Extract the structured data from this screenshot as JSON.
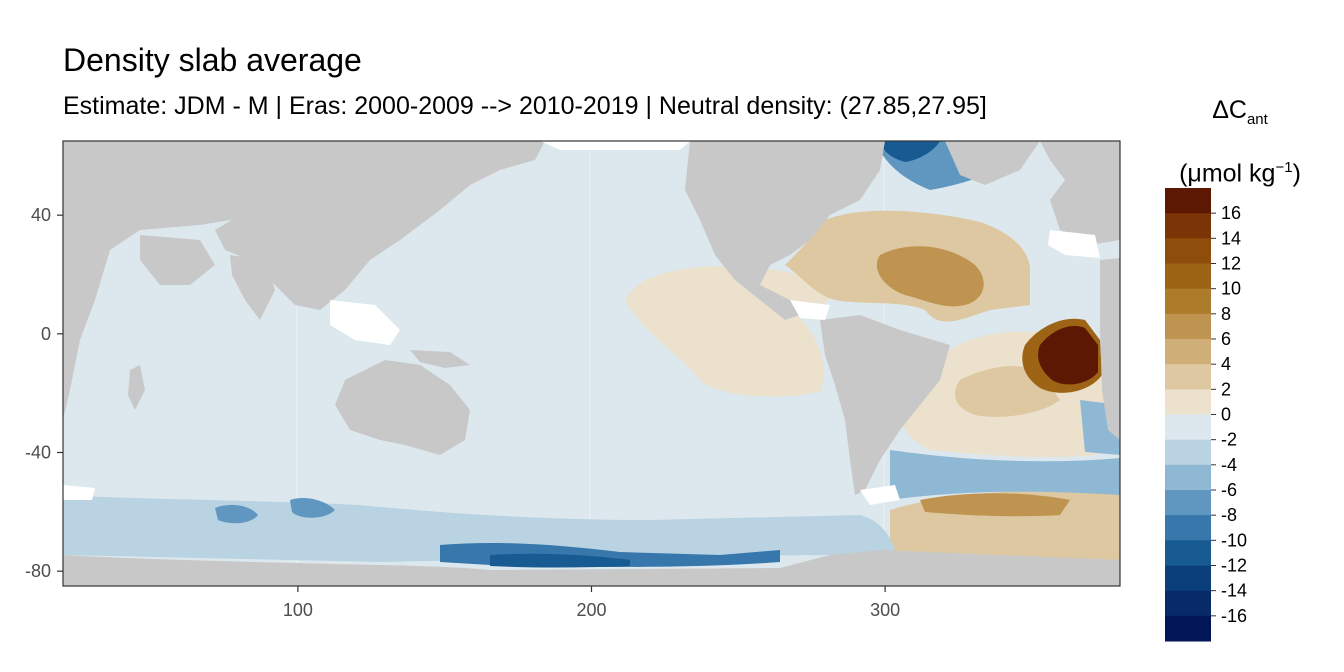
{
  "title": "Density slab average",
  "subtitle": "Estimate: JDM - M | Eras: 2000-2009 --> 2010-2019 | Neutral density: (27.85,27.95]",
  "legend": {
    "title_main": "ΔC",
    "title_sub": "ant",
    "units_open": "(μmol kg",
    "units_sup": "−1",
    "units_close": ")",
    "labels": [
      "16",
      "14",
      "12",
      "10",
      "8",
      "6",
      "4",
      "2",
      "0",
      "-2",
      "-4",
      "-6",
      "-8",
      "-10",
      "-12",
      "-14",
      "-16"
    ],
    "colors": [
      "#5c1802",
      "#7a3406",
      "#8f4d0b",
      "#9e6416",
      "#ad7c2b",
      "#bf9450",
      "#cfae78",
      "#ddc8a1",
      "#ebe1cd",
      "#dde8ee",
      "#b9d3e2",
      "#8fb8d4",
      "#5f97c1",
      "#3877ac",
      "#185b93",
      "#0b3f7b",
      "#072a68",
      "#021557"
    ]
  },
  "chart_data": {
    "type": "heatmap",
    "title": "Density slab average",
    "subtitle": "Estimate: JDM - M | Eras: 2000-2009 --> 2010-2019 | Neutral density: (27.85,27.95]",
    "xlabel": "",
    "ylabel": "",
    "xlim": [
      20,
      380
    ],
    "ylim": [
      -85,
      65
    ],
    "x_ticks": [
      100,
      200,
      300
    ],
    "y_ticks": [
      40,
      0,
      -40,
      -80
    ],
    "grid": true,
    "legend_position": "right",
    "land_color": "#c8c8c8",
    "no_data_color": "#ffffff"
  }
}
